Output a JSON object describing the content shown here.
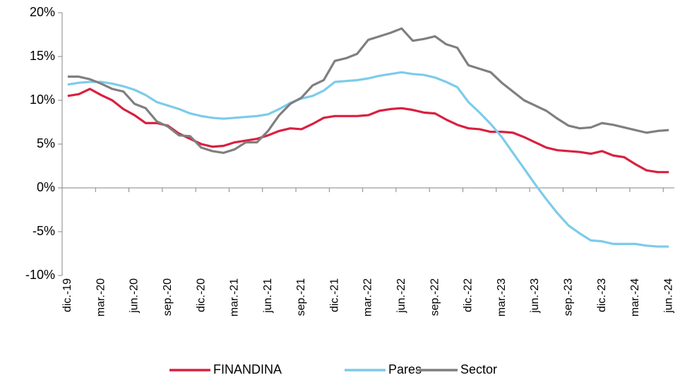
{
  "chart_data": {
    "type": "line",
    "categories": [
      "dic.-19",
      null,
      null,
      "mar.-20",
      null,
      null,
      "jun.-20",
      null,
      null,
      "sep.-20",
      null,
      null,
      "dic.-20",
      null,
      null,
      "mar.-21",
      null,
      null,
      "jun.-21",
      null,
      null,
      "sep.-21",
      null,
      null,
      "dic.-21",
      null,
      null,
      "mar.-22",
      null,
      null,
      "jun.-22",
      null,
      null,
      "sep.-22",
      null,
      null,
      "dic.-22",
      null,
      null,
      "mar.-23",
      null,
      null,
      "jun.-23",
      null,
      null,
      "sep.-23",
      null,
      null,
      "dic.-23",
      null,
      null,
      "mar.-24",
      null,
      null,
      "jun.-24"
    ],
    "series": [
      {
        "name": "FINANDINA",
        "color": "#d9203f",
        "values": [
          10.5,
          10.7,
          11.3,
          10.6,
          10.0,
          9.0,
          8.3,
          7.4,
          7.4,
          7.1,
          6.2,
          5.6,
          5.0,
          4.7,
          4.8,
          5.2,
          5.4,
          5.6,
          6.0,
          6.5,
          6.8,
          6.7,
          7.3,
          8.0,
          8.2,
          8.2,
          8.2,
          8.3,
          8.8,
          9.0,
          9.1,
          8.9,
          8.6,
          8.5,
          7.8,
          7.2,
          6.8,
          6.7,
          6.4,
          6.4,
          6.3,
          5.8,
          5.2,
          4.6,
          4.3,
          4.2,
          4.1,
          3.9,
          4.2,
          3.7,
          3.5,
          2.7,
          2.0,
          1.8,
          1.8
        ]
      },
      {
        "name": "Pares",
        "color": "#7ccbea",
        "values": [
          11.8,
          12.0,
          12.1,
          12.1,
          11.9,
          11.6,
          11.2,
          10.6,
          9.8,
          9.4,
          9.0,
          8.5,
          8.2,
          8.0,
          7.9,
          8.0,
          8.1,
          8.2,
          8.4,
          9.0,
          9.7,
          10.2,
          10.5,
          11.1,
          12.1,
          12.2,
          12.3,
          12.5,
          12.8,
          13.0,
          13.2,
          13.0,
          12.9,
          12.6,
          12.1,
          11.5,
          9.8,
          8.6,
          7.3,
          5.8,
          4.0,
          2.2,
          0.4,
          -1.3,
          -2.9,
          -4.3,
          -5.2,
          -6.0,
          -6.1,
          -6.4,
          -6.4,
          -6.4,
          -6.6,
          -6.7,
          -6.7
        ]
      },
      {
        "name": "Sector",
        "color": "#7f7f7f",
        "values": [
          12.7,
          12.7,
          12.4,
          11.9,
          11.3,
          11.0,
          9.6,
          9.1,
          7.6,
          7.0,
          6.0,
          5.9,
          4.6,
          4.2,
          4.0,
          4.4,
          5.2,
          5.2,
          6.5,
          8.3,
          9.6,
          10.3,
          11.7,
          12.3,
          14.5,
          14.8,
          15.3,
          16.9,
          17.3,
          17.7,
          18.2,
          16.8,
          17.0,
          17.3,
          16.4,
          16.0,
          14.0,
          13.6,
          13.2,
          12.0,
          11.0,
          10.0,
          9.4,
          8.8,
          7.9,
          7.1,
          6.8,
          6.9,
          7.4,
          7.2,
          6.9,
          6.6,
          6.3,
          6.5,
          6.6
        ]
      }
    ],
    "ylim": [
      -10,
      20
    ],
    "yticks": [
      {
        "value": -10,
        "label": "-10%"
      },
      {
        "value": -5,
        "label": "-5%"
      },
      {
        "value": 0,
        "label": "0%"
      },
      {
        "value": 5,
        "label": "5%"
      },
      {
        "value": 10,
        "label": "10%"
      },
      {
        "value": 15,
        "label": "15%"
      },
      {
        "value": 20,
        "label": "20%"
      }
    ],
    "legend": "bottom"
  }
}
